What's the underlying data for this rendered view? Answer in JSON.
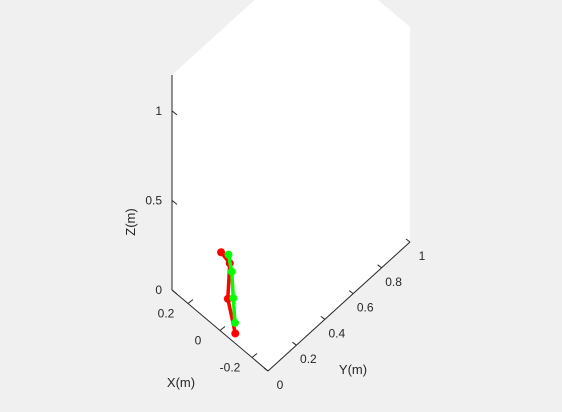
{
  "chart_data": {
    "type": "line3d",
    "xlabel": "X(m)",
    "ylabel": "Y(m)",
    "zlabel": "Z(m)",
    "xlim": [
      -0.3,
      0.3
    ],
    "ylim": [
      0,
      1
    ],
    "zlim": [
      0,
      1.2
    ],
    "x_ticks": [
      "-0.2",
      "0",
      "0.2"
    ],
    "y_ticks": [
      "0",
      "0.2",
      "0.4",
      "0.6",
      "0.8",
      "1"
    ],
    "z_ticks": [
      "0",
      "0.5",
      "1"
    ],
    "x_tick_values": [
      -0.2,
      0,
      0.2
    ],
    "y_tick_values": [
      0,
      0.2,
      0.4,
      0.6,
      0.8,
      1
    ],
    "z_tick_values": [
      0,
      0.5,
      1
    ],
    "grid": false,
    "series": [
      {
        "color": "#ff0000",
        "points": [
          {
            "x": 0.02,
            "y": 0.03,
            "z": 0.4
          },
          {
            "x": 0.01,
            "y": 0.08,
            "z": 0.31
          },
          {
            "x": -0.04,
            "y": 0.01,
            "z": 0.2
          },
          {
            "x": -0.06,
            "y": 0.04,
            "z": 0.0
          }
        ]
      },
      {
        "color": "#00ff00",
        "points": [
          {
            "x": 0.0,
            "y": 0.06,
            "z": 0.38
          },
          {
            "x": -0.02,
            "y": 0.06,
            "z": 0.3
          },
          {
            "x": -0.03,
            "y": 0.06,
            "z": 0.16
          },
          {
            "x": -0.04,
            "y": 0.06,
            "z": 0.03
          }
        ]
      }
    ]
  }
}
